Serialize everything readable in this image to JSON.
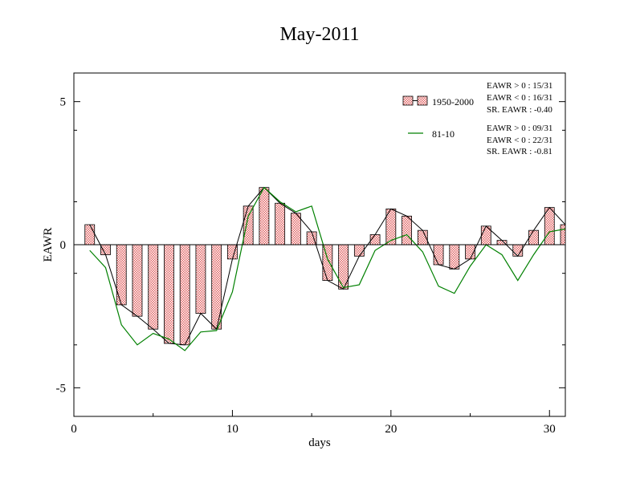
{
  "chart_data": {
    "type": "bar",
    "title": "May-2011",
    "xlabel": "days",
    "ylabel": "EAWR",
    "xlim": [
      0,
      31
    ],
    "ylim": [
      -6,
      6
    ],
    "x_ticks": [
      0,
      10,
      20,
      30
    ],
    "y_ticks": [
      -5,
      0,
      5
    ],
    "x_tick_labels": [
      "0",
      "10",
      "20",
      "30"
    ],
    "y_tick_labels": [
      "-5",
      "0",
      "5"
    ],
    "grid": false,
    "legend_position": "top-right",
    "series": [
      {
        "name": "1950-2000",
        "kind": "bar-with-line",
        "fill": "#e06666",
        "line_color": "#000000",
        "x": [
          1,
          2,
          3,
          4,
          5,
          6,
          7,
          8,
          9,
          10,
          11,
          12,
          13,
          14,
          15,
          16,
          17,
          18,
          19,
          20,
          21,
          22,
          23,
          24,
          25,
          26,
          27,
          28,
          29,
          30,
          31
        ],
        "values": [
          0.7,
          -0.35,
          -2.1,
          -2.5,
          -2.95,
          -3.45,
          -3.5,
          -2.4,
          -2.95,
          -0.5,
          1.35,
          2.0,
          1.45,
          1.1,
          0.45,
          -1.25,
          -1.55,
          -0.4,
          0.35,
          1.25,
          1.0,
          0.5,
          -0.7,
          -0.85,
          -0.5,
          0.65,
          0.15,
          -0.4,
          0.5,
          1.3,
          0.7
        ]
      },
      {
        "name": "81-10",
        "kind": "line",
        "color": "#008000",
        "x": [
          1,
          2,
          3,
          4,
          5,
          6,
          7,
          8,
          9,
          10,
          11,
          12,
          13,
          14,
          15,
          16,
          17,
          18,
          19,
          20,
          21,
          22,
          23,
          24,
          25,
          26,
          27,
          28,
          29,
          30,
          31
        ],
        "values": [
          -0.2,
          -0.8,
          -2.8,
          -3.5,
          -3.1,
          -3.3,
          -3.7,
          -3.05,
          -3.0,
          -1.65,
          1.0,
          2.0,
          1.5,
          1.15,
          1.35,
          -0.5,
          -1.5,
          -1.4,
          -0.2,
          0.15,
          0.35,
          -0.25,
          -1.45,
          -1.7,
          -0.75,
          0.0,
          -0.35,
          -1.25,
          -0.35,
          0.45,
          0.55
        ]
      }
    ],
    "annotations": {
      "group1": [
        "EAWR > 0 : 15/31",
        "EAWR < 0 : 16/31",
        "SR. EAWR : -0.40"
      ],
      "group2": [
        "EAWR > 0 : 09/31",
        "EAWR < 0 : 22/31",
        "SR. EAWR : -0.81"
      ]
    }
  }
}
